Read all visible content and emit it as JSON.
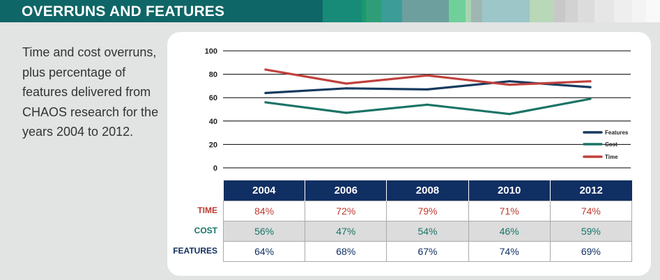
{
  "header": {
    "title": "OVERRUNS AND FEATURES"
  },
  "description": "Time and cost overruns, plus percentage of features delivered from CHAOS research for the years 2004 to 2012.",
  "colors": {
    "features": "#163a5f",
    "cost": "#1b7466",
    "time": "#c0403c",
    "header_bar": "#0f6666",
    "table_header": "#102f63"
  },
  "chart_data": {
    "type": "line",
    "title": "",
    "xlabel": "",
    "ylabel": "",
    "x": [
      "2004",
      "2006",
      "2008",
      "2010",
      "2012"
    ],
    "y_ticks": [
      "0",
      "20",
      "40",
      "60",
      "80",
      "100"
    ],
    "ylim": [
      0,
      100
    ],
    "grid": true,
    "legend_position": "right",
    "series": [
      {
        "name": "Features",
        "values": [
          64,
          68,
          67,
          74,
          69
        ]
      },
      {
        "name": "Cost",
        "values": [
          56,
          47,
          54,
          46,
          59
        ]
      },
      {
        "name": "Time",
        "values": [
          84,
          72,
          79,
          71,
          74
        ]
      }
    ]
  },
  "table": {
    "columns": [
      "2004",
      "2006",
      "2008",
      "2010",
      "2012"
    ],
    "rows": [
      {
        "label": "TIME",
        "values": [
          "84%",
          "72%",
          "79%",
          "71%",
          "74%"
        ]
      },
      {
        "label": "COST",
        "values": [
          "56%",
          "47%",
          "54%",
          "46%",
          "59%"
        ]
      },
      {
        "label": "FEATURES",
        "values": [
          "64%",
          "68%",
          "67%",
          "74%",
          "69%"
        ]
      }
    ]
  }
}
